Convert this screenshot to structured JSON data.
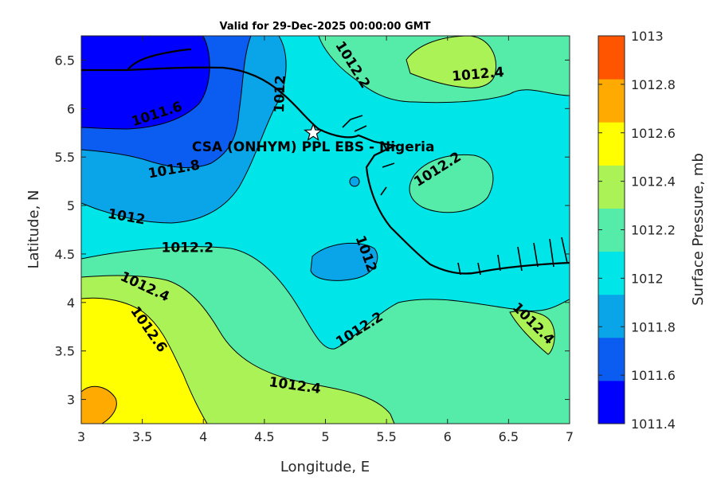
{
  "chart_data": {
    "type": "heatmap",
    "subtype": "filled-contour",
    "title": "Valid for 29-Dec-2025 00:00:00 GMT",
    "xlabel": "Longitude, E",
    "ylabel": "Latitude, N",
    "xlim": [
      3,
      7
    ],
    "ylim": [
      2.75,
      6.75
    ],
    "x_ticks": [
      "3",
      "3.5",
      "4",
      "4.5",
      "5",
      "5.5",
      "6",
      "6.5",
      "7"
    ],
    "y_ticks": [
      "3",
      "3.5",
      "4",
      "4.5",
      "5",
      "5.5",
      "6",
      "6.5"
    ],
    "colorbar": {
      "label": "Surface Pressure, mb",
      "levels": [
        1011.4,
        1011.6,
        1011.8,
        1012,
        1012.2,
        1012.4,
        1012.6,
        1012.8,
        1013
      ],
      "tick_labels": [
        "1011.4",
        "1011.6",
        "1011.8",
        "1012",
        "1012.2",
        "1012.4",
        "1012.6",
        "1012.8",
        "1013"
      ],
      "colors": [
        "#0000ff",
        "#0b5cf1",
        "#0aa5e9",
        "#00e5e8",
        "#55ecaa",
        "#aaf255",
        "#ffff00",
        "#ffaa00",
        "#ff5500"
      ]
    },
    "contour_labels": [
      {
        "text": "1011.6",
        "lon": 3.62,
        "lat": 5.94,
        "angle": -18
      },
      {
        "text": "1011.8",
        "lon": 3.76,
        "lat": 5.37,
        "angle": -10
      },
      {
        "text": "1012",
        "lon": 3.37,
        "lat": 4.88,
        "angle": 10
      },
      {
        "text": "1012",
        "lon": 4.63,
        "lat": 6.15,
        "angle": -88
      },
      {
        "text": "1012",
        "lon": 5.33,
        "lat": 4.5,
        "angle": 70
      },
      {
        "text": "1012.2",
        "lon": 3.87,
        "lat": 4.56,
        "angle": 0
      },
      {
        "text": "1012.2",
        "lon": 5.22,
        "lat": 6.45,
        "angle": 58
      },
      {
        "text": "1012.2",
        "lon": 5.92,
        "lat": 5.37,
        "angle": -32
      },
      {
        "text": "1012.2",
        "lon": 5.28,
        "lat": 3.72,
        "angle": -32
      },
      {
        "text": "1012.4",
        "lon": 3.52,
        "lat": 4.16,
        "angle": 25
      },
      {
        "text": "1012.4",
        "lon": 6.25,
        "lat": 6.35,
        "angle": -5
      },
      {
        "text": "1012.4",
        "lon": 6.7,
        "lat": 3.78,
        "angle": 45
      },
      {
        "text": "1012.4",
        "lon": 4.75,
        "lat": 3.14,
        "angle": 8
      },
      {
        "text": "1012.6",
        "lon": 3.55,
        "lat": 3.72,
        "angle": 55
      }
    ],
    "annotation": {
      "text": "CSA (ONHYM) PPL EBS - Nigeria",
      "lon": 4.9,
      "lat": 5.75,
      "marker": "star"
    },
    "grid": false,
    "legend": "none"
  }
}
